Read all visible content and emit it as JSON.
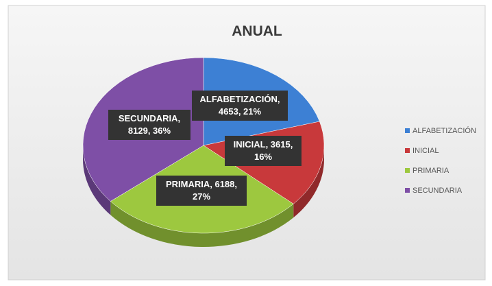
{
  "chart_data": {
    "type": "pie",
    "title": "ANUAL",
    "categories": [
      "ALFABETIZACIÓN",
      "INICIAL",
      "PRIMARIA",
      "SECUNDARIA"
    ],
    "values": [
      4653,
      3615,
      6188,
      8129
    ],
    "value_labels": [
      "ALFABETIZACIÓN, 4653, 21%",
      "INICIAL, 3615, 16%",
      "PRIMARIA, 6188, 27%",
      "SECUNDARIA, 8129, 36%"
    ],
    "colors": [
      "#3d80d4",
      "#c8393b",
      "#9dc83f",
      "#7e4fa6"
    ],
    "legend": "right"
  }
}
